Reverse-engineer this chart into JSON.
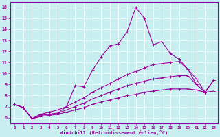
{
  "title": "",
  "xlabel": "Windchill (Refroidissement éolien,°C)",
  "ylabel": "",
  "xlim": [
    -0.5,
    23.5
  ],
  "ylim": [
    5.5,
    16.5
  ],
  "xticks": [
    0,
    1,
    2,
    3,
    4,
    5,
    6,
    7,
    8,
    9,
    10,
    11,
    12,
    13,
    14,
    15,
    16,
    17,
    18,
    19,
    20,
    21,
    22,
    23
  ],
  "yticks": [
    6,
    7,
    8,
    9,
    10,
    11,
    12,
    13,
    14,
    15,
    16
  ],
  "bg_color": "#c8eef0",
  "line_color": "#990099",
  "grid_color": "#b0d8db",
  "lines": [
    {
      "x": [
        0,
        1,
        2,
        3,
        4,
        5,
        6,
        7,
        8,
        9,
        10,
        11,
        12,
        13,
        14,
        15,
        16,
        17,
        18,
        19,
        20,
        21,
        22,
        23
      ],
      "y": [
        7.2,
        6.9,
        5.9,
        6.3,
        6.3,
        6.4,
        7.0,
        8.9,
        8.8,
        10.3,
        11.5,
        12.5,
        12.7,
        13.8,
        16.0,
        15.0,
        12.6,
        12.9,
        11.8,
        11.3,
        10.4,
        9.0,
        8.3,
        9.4
      ],
      "marker": true
    },
    {
      "x": [
        0,
        1,
        2,
        3,
        4,
        5,
        6,
        7,
        8,
        9,
        10,
        11,
        12,
        13,
        14,
        15,
        16,
        17,
        18,
        19,
        20,
        21,
        22,
        23
      ],
      "y": [
        7.2,
        6.9,
        5.9,
        6.3,
        6.5,
        6.7,
        7.0,
        7.4,
        7.8,
        8.3,
        8.7,
        9.1,
        9.5,
        9.9,
        10.2,
        10.5,
        10.8,
        10.9,
        11.0,
        11.1,
        10.4,
        9.5,
        8.3,
        9.4
      ],
      "marker": true
    },
    {
      "x": [
        0,
        1,
        2,
        3,
        4,
        5,
        6,
        7,
        8,
        9,
        10,
        11,
        12,
        13,
        14,
        15,
        16,
        17,
        18,
        19,
        20,
        21,
        22,
        23
      ],
      "y": [
        7.2,
        6.9,
        5.9,
        6.2,
        6.3,
        6.4,
        6.7,
        7.0,
        7.3,
        7.7,
        8.0,
        8.3,
        8.6,
        8.9,
        9.1,
        9.3,
        9.5,
        9.6,
        9.7,
        9.8,
        9.8,
        9.0,
        8.3,
        9.4
      ],
      "marker": true
    },
    {
      "x": [
        0,
        1,
        2,
        3,
        4,
        5,
        6,
        7,
        8,
        9,
        10,
        11,
        12,
        13,
        14,
        15,
        16,
        17,
        18,
        19,
        20,
        21,
        22,
        23
      ],
      "y": [
        7.2,
        6.9,
        5.9,
        6.1,
        6.2,
        6.3,
        6.5,
        6.7,
        6.9,
        7.2,
        7.4,
        7.6,
        7.8,
        8.0,
        8.1,
        8.3,
        8.4,
        8.5,
        8.6,
        8.6,
        8.6,
        8.5,
        8.3,
        8.4
      ],
      "marker": true
    }
  ]
}
